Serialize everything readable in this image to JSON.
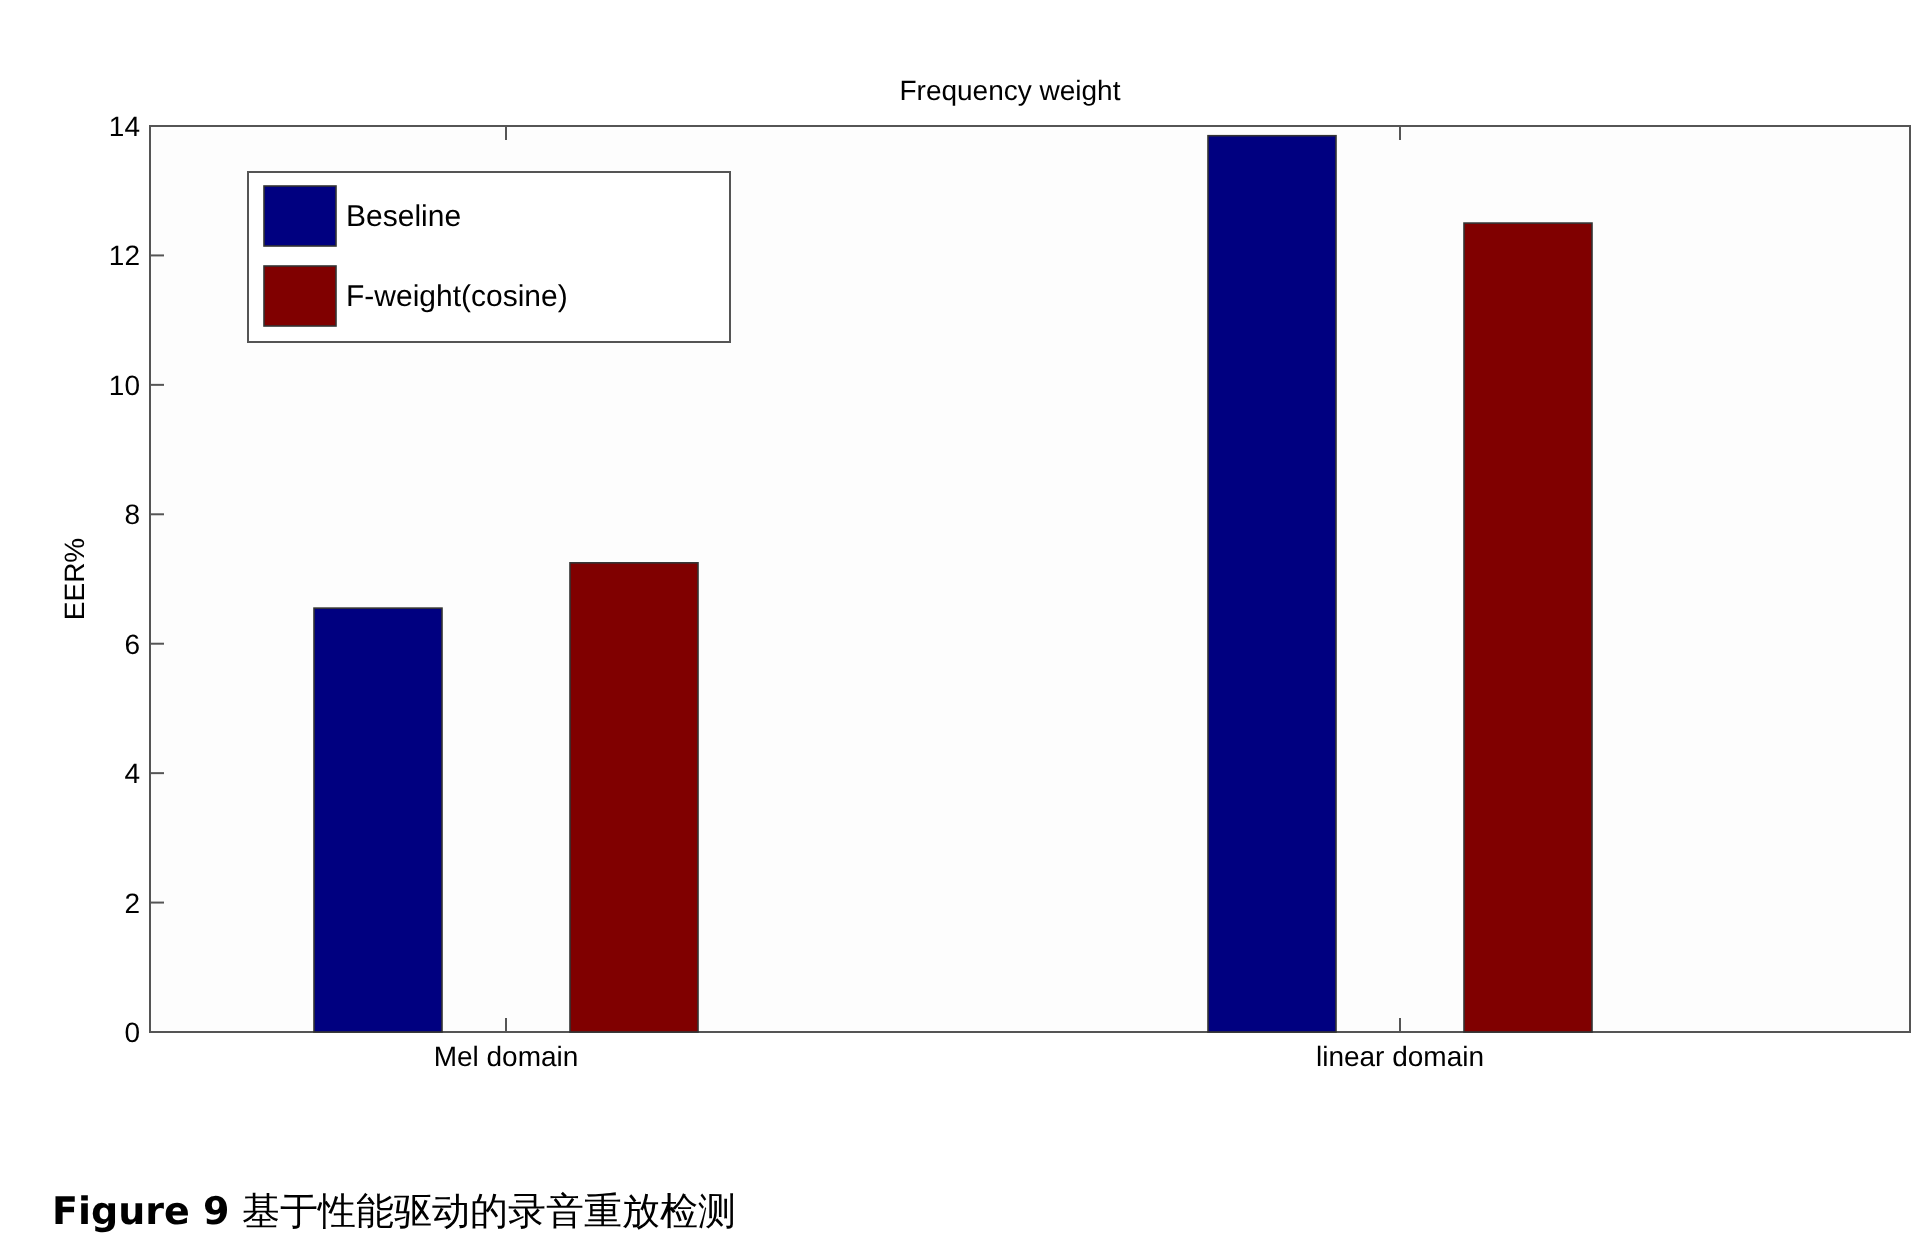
{
  "chart_data": {
    "type": "bar",
    "title": "Frequency weight",
    "ylabel": "EER%",
    "categories": [
      "Mel domain",
      "linear domain"
    ],
    "series": [
      {
        "name": "Beseline",
        "color": "#000080",
        "values": [
          6.55,
          13.85
        ]
      },
      {
        "name": "F-weight(cosine)",
        "color": "#800000",
        "values": [
          7.25,
          12.5
        ]
      }
    ],
    "ylim": [
      0,
      14
    ],
    "yticks": [
      0,
      2,
      4,
      6,
      8,
      10,
      12,
      14
    ],
    "legend": "top left",
    "annotations": [
      "**Figure 9** 基于性能驱动的录音重放检测"
    ]
  }
}
